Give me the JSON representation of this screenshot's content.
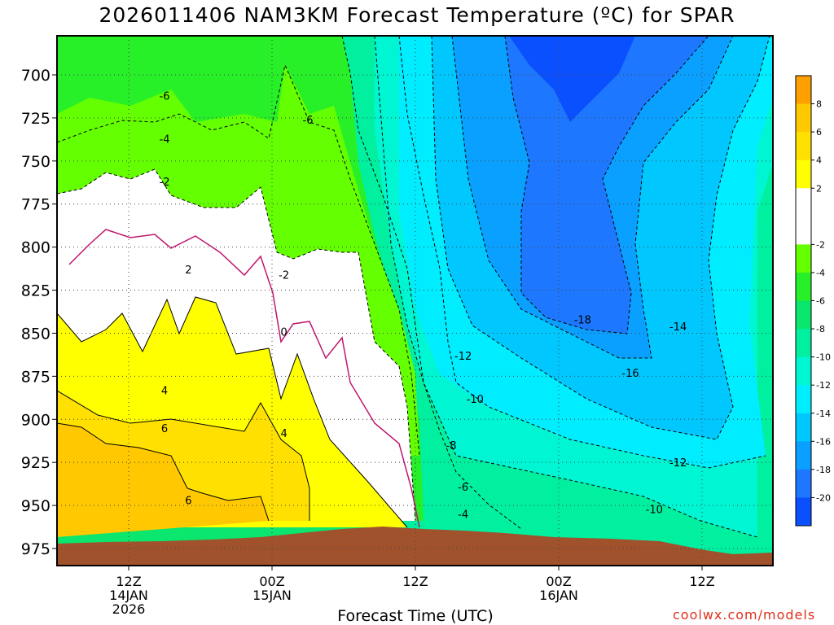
{
  "title": "2026011406 NAM3KM Forecast Temperature (ºC) for SPAR",
  "watermark": "coolwx.com/models",
  "chart_data": {
    "type": "contour",
    "title": "2026011406 NAM3KM Forecast Temperature (ºC) for SPAR",
    "xlabel": "Forecast Time (UTC)",
    "ylabel": "",
    "y_scale": "pressure (hPa), increasing downward",
    "ylim": [
      975,
      685
    ],
    "y_ticks": [
      700,
      725,
      750,
      775,
      800,
      825,
      850,
      875,
      900,
      925,
      950,
      975
    ],
    "x_ticks": [
      {
        "time": "2026-01-14 12Z",
        "label": [
          "12Z",
          "14JAN",
          "2026"
        ]
      },
      {
        "time": "2026-01-15 00Z",
        "label": [
          "00Z",
          "15JAN"
        ]
      },
      {
        "time": "2026-01-15 12Z",
        "label": [
          "12Z"
        ]
      },
      {
        "time": "2026-01-16 00Z",
        "label": [
          "00Z",
          "16JAN"
        ]
      },
      {
        "time": "2026-01-16 12Z",
        "label": [
          "12Z"
        ]
      }
    ],
    "grid": true,
    "colorbar": {
      "position": "right",
      "levels": [
        -22,
        -20,
        -18,
        -16,
        -14,
        -12,
        -10,
        -8,
        -6,
        -4,
        -2,
        0,
        2,
        4,
        6,
        8,
        10
      ],
      "tick_labels": [
        "8",
        "6",
        "4",
        "2",
        "-2",
        "-4",
        "-6",
        "-8",
        "-10",
        "-12",
        "-14",
        "-16",
        "-18",
        "-20"
      ],
      "colors": [
        "#0a50ff",
        "#1e78ff",
        "#0aa0ff",
        "#00c8ff",
        "#00ecff",
        "#00f5d2",
        "#00f0a0",
        "#0ae66e",
        "#28f028",
        "#64ff00",
        "#ffffff",
        "#ffffff",
        "#ffff00",
        "#ffe000",
        "#ffc800",
        "#ffa000"
      ]
    },
    "contour_labels": [
      {
        "time": "2026-01-14 15Z",
        "pressure": 712,
        "value": "-6"
      },
      {
        "time": "2026-01-14 15Z",
        "pressure": 737,
        "value": "-4"
      },
      {
        "time": "2026-01-14 15Z",
        "pressure": 762,
        "value": "-2"
      },
      {
        "time": "2026-01-15 03Z",
        "pressure": 726,
        "value": "-6"
      },
      {
        "time": "2026-01-15 01Z",
        "pressure": 816,
        "value": "-2"
      },
      {
        "time": "2026-01-14 17Z",
        "pressure": 813,
        "value": "2"
      },
      {
        "time": "2026-01-15 01Z",
        "pressure": 849,
        "value": "0"
      },
      {
        "time": "2026-01-14 15Z",
        "pressure": 883,
        "value": "4"
      },
      {
        "time": "2026-01-15 01Z",
        "pressure": 908,
        "value": "4"
      },
      {
        "time": "2026-01-14 15Z",
        "pressure": 905,
        "value": "6"
      },
      {
        "time": "2026-01-14 17Z",
        "pressure": 947,
        "value": "6"
      },
      {
        "time": "2026-01-15 16Z",
        "pressure": 863,
        "value": "-12"
      },
      {
        "time": "2026-01-15 17Z",
        "pressure": 888,
        "value": "-10"
      },
      {
        "time": "2026-01-15 15Z",
        "pressure": 915,
        "value": "-8"
      },
      {
        "time": "2026-01-15 16Z",
        "pressure": 939,
        "value": "-6"
      },
      {
        "time": "2026-01-15 16Z",
        "pressure": 955,
        "value": "-4"
      },
      {
        "time": "2026-01-16 02Z",
        "pressure": 842,
        "value": "-18"
      },
      {
        "time": "2026-01-16 10Z",
        "pressure": 846,
        "value": "-14"
      },
      {
        "time": "2026-01-16 06Z",
        "pressure": 873,
        "value": "-16"
      },
      {
        "time": "2026-01-16 10Z",
        "pressure": 925,
        "value": "-12"
      },
      {
        "time": "2026-01-16 08Z",
        "pressure": 952,
        "value": "-10"
      }
    ],
    "ground": {
      "description_color": "#a0522d"
    }
  }
}
